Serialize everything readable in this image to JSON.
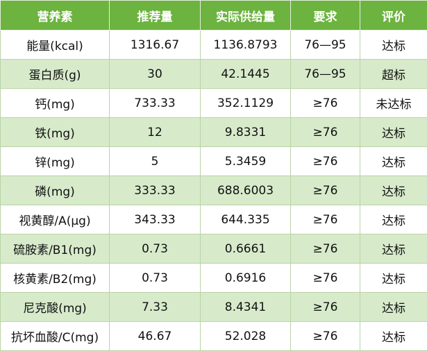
{
  "table": {
    "headers": [
      "营养素",
      "推荐量",
      "实际供给量",
      "要求",
      "评价"
    ],
    "rows": [
      [
        "能量(kcal)",
        "1316.67",
        "1136.8793",
        "76—95",
        "达标"
      ],
      [
        "蛋白质(g)",
        "30",
        "42.1445",
        "76—95",
        "超标"
      ],
      [
        "钙(mg)",
        "733.33",
        "352.1129",
        "≥76",
        "未达标"
      ],
      [
        "铁(mg)",
        "12",
        "9.8331",
        "≥76",
        "达标"
      ],
      [
        "锌(mg)",
        "5",
        "5.3459",
        "≥76",
        "达标"
      ],
      [
        "磷(mg)",
        "333.33",
        "688.6003",
        "≥76",
        "达标"
      ],
      [
        "视黄醇/A(μg)",
        "343.33",
        "644.335",
        "≥76",
        "达标"
      ],
      [
        "硫胺素/B1(mg)",
        "0.73",
        "0.6661",
        "≥76",
        "达标"
      ],
      [
        "核黄素/B2(mg)",
        "0.73",
        "0.6916",
        "≥76",
        "达标"
      ],
      [
        "尼克酸(mg)",
        "7.33",
        "8.4341",
        "≥76",
        "达标"
      ],
      [
        "抗坏血酸/C(mg)",
        "46.67",
        "52.028",
        "≥76",
        "达标"
      ]
    ]
  },
  "colors": {
    "header_bg": "#6cb33f",
    "header_text": "#ffffff",
    "stripe_bg": "#d7ebcb",
    "row_bg": "#ffffff",
    "grid_line": "#b9d3a6"
  }
}
